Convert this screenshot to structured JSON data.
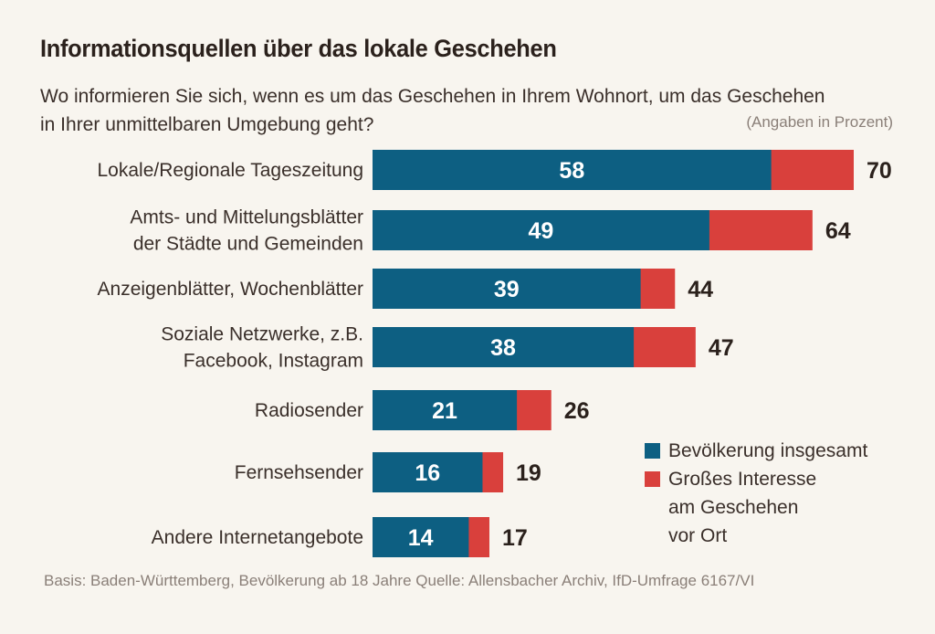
{
  "title": "Informationsquellen über das lokale Geschehen",
  "subtitle": "Wo informieren Sie sich, wenn es um das Geschehen in Ihrem Wohnort, um das Geschehen in Ihrer unmittelbaren Umgebung geht?",
  "unit_note": "(Angaben in Prozent)",
  "footer": "Basis: Baden-Württemberg, Bevölkerung ab 18 Jahre Quelle: Allensbacher Archiv, IfD-Umfrage 6167/VI",
  "colors": {
    "blue": "#0d5f82",
    "red": "#d9403c"
  },
  "legend": [
    {
      "label": "Bevölkerung insgesamt",
      "color": "#0d5f82"
    },
    {
      "label": "Großes Interesse\nam Geschehen\nvor Ort",
      "color": "#d9403c"
    }
  ],
  "chart_data": {
    "type": "bar",
    "orientation": "horizontal",
    "categories": [
      [
        "Lokale/Regionale Tageszeitung"
      ],
      [
        "Amts- und Mittelungsblätter",
        "der Städte und Gemeinden"
      ],
      [
        "Anzeigenblätter, Wochenblätter"
      ],
      [
        "Soziale Netzwerke, z.B.",
        "Facebook, Instagram"
      ],
      [
        "Radiosender"
      ],
      [
        "Fernsehsender"
      ],
      [
        "Andere Internetangebote"
      ]
    ],
    "series": [
      {
        "name": "Bevölkerung insgesamt",
        "values": [
          58,
          49,
          39,
          38,
          21,
          16,
          14
        ]
      },
      {
        "name": "Großes Interesse am Geschehen vor Ort",
        "values": [
          70,
          64,
          44,
          47,
          26,
          19,
          17
        ]
      }
    ],
    "xlim": [
      0,
      70
    ],
    "grid": false,
    "legend_position": "bottom-right"
  }
}
